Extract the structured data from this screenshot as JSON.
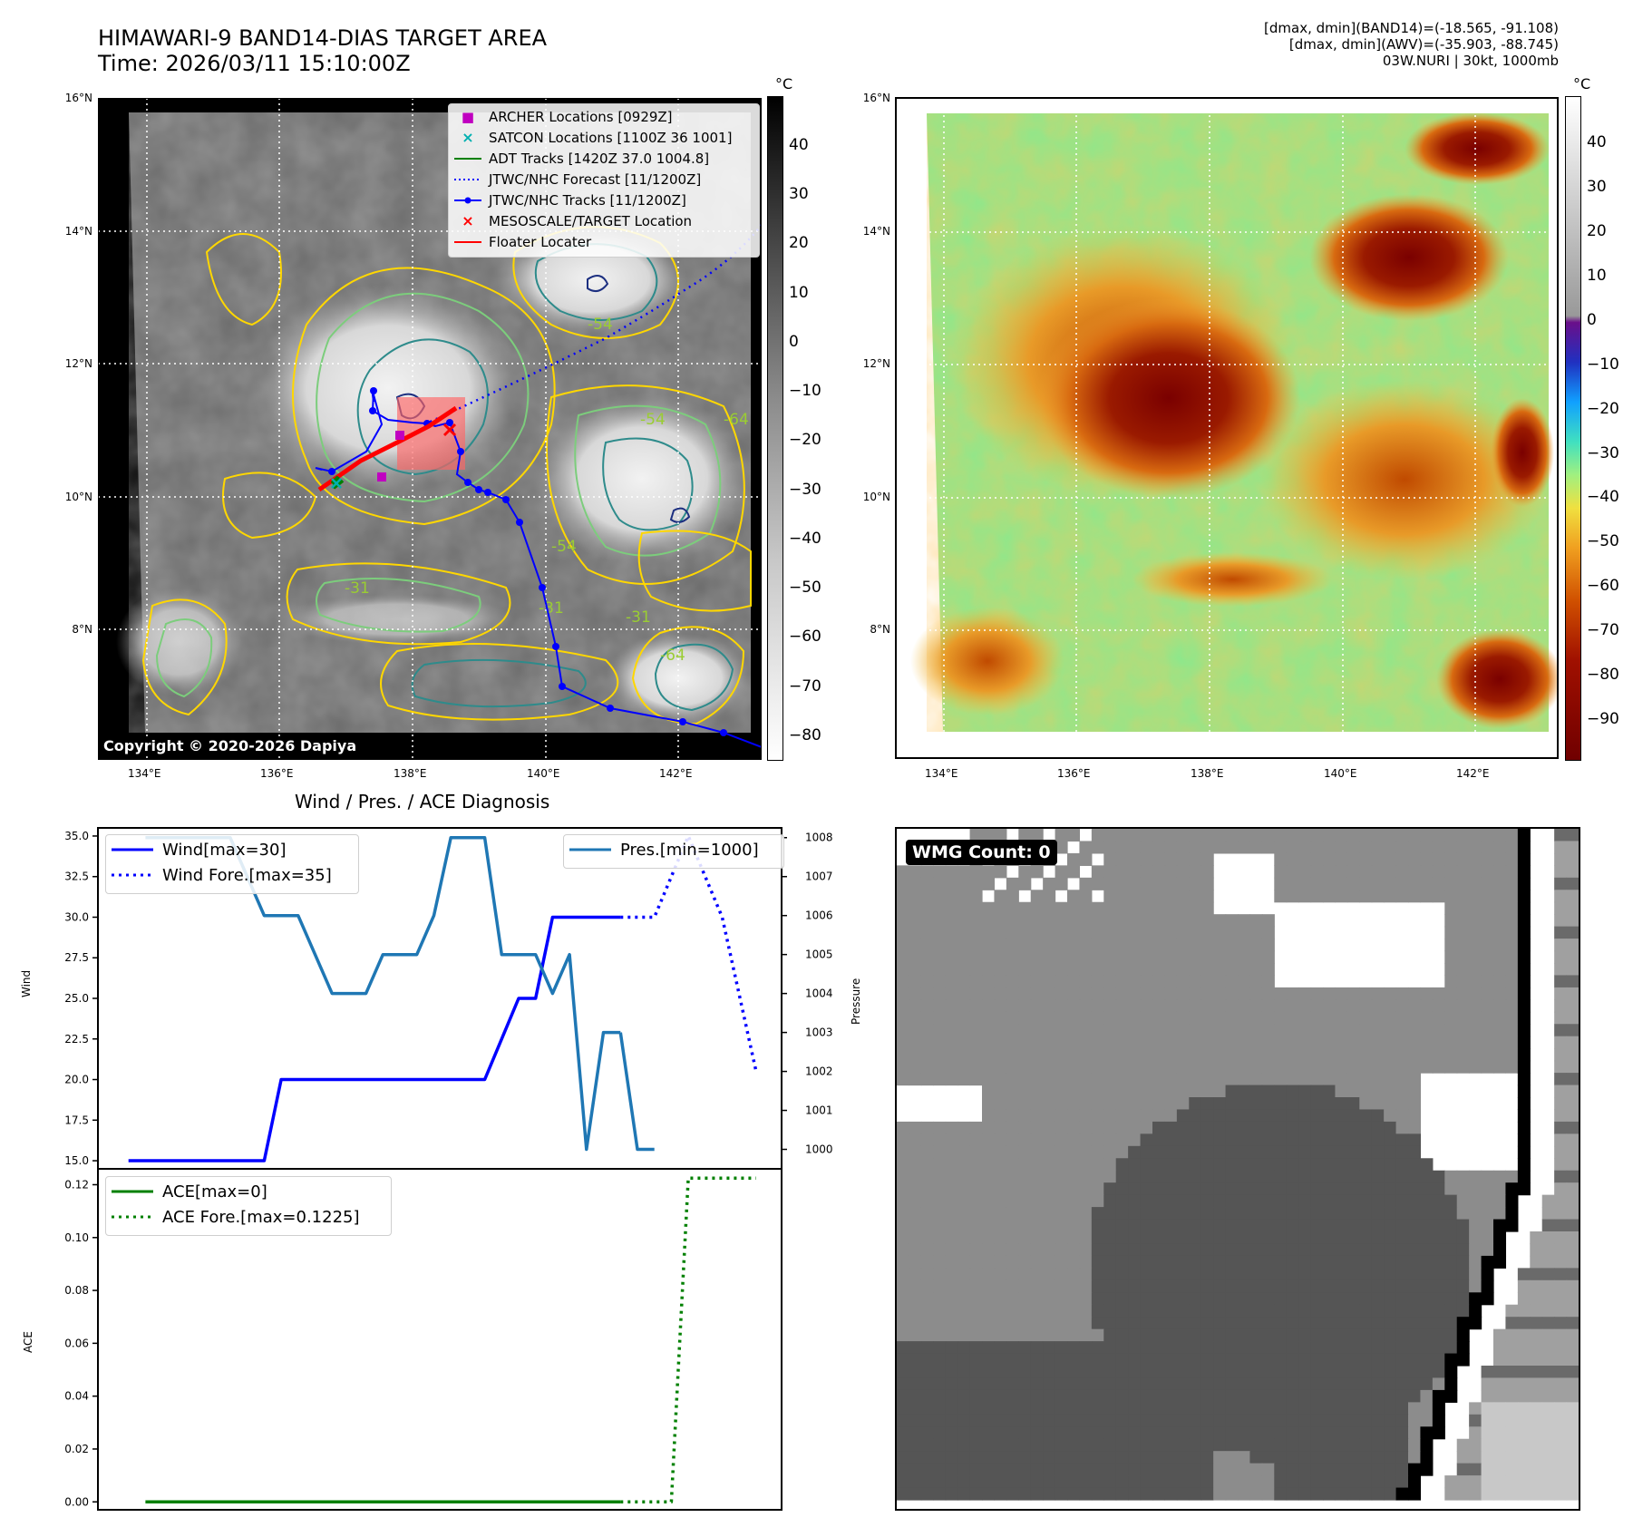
{
  "header": {
    "title_line1": "HIMAWARI-9 BAND14-DIAS TARGET AREA",
    "title_line2": "Time: 2026/03/11 15:10:00Z",
    "info_line1": "[dmax, dmin](BAND14)=(-18.565, -91.108)",
    "info_line2": "[dmax, dmin](AWV)=(-35.903, -88.745)",
    "info_line3": "03W.NURI | 30kt, 1000mb"
  },
  "ir_map": {
    "lat_ticks": [
      "16°N",
      "14°N",
      "12°N",
      "10°N",
      "8°N"
    ],
    "lon_ticks": [
      "134°E",
      "136°E",
      "138°E",
      "140°E",
      "142°E"
    ],
    "copyright": "Copyright © 2020-2026 Dapiya",
    "colorbar_unit": "°C",
    "colorbar_ticks": [
      "40",
      "30",
      "20",
      "10",
      "0",
      "−10",
      "−20",
      "−30",
      "−40",
      "−50",
      "−60",
      "−70",
      "−80"
    ],
    "contour_labels": [
      "-31",
      "-54",
      "-64"
    ],
    "legend": [
      {
        "label": "ARCHER Locations [0929Z]",
        "color": "#c000c0"
      },
      {
        "label": "SATCON Locations [1100Z 36 1001]",
        "color": "#00b0b0"
      },
      {
        "label": "ADT Tracks [1420Z 37.0 1004.8]",
        "color": "#008000"
      },
      {
        "label": "JTWC/NHC Forecast [11/1200Z]",
        "color": "#0000ff"
      },
      {
        "label": "JTWC/NHC Tracks [11/1200Z]",
        "color": "#0000ff"
      },
      {
        "label": "MESOSCALE/TARGET Location",
        "color": "#ff0000"
      },
      {
        "label": "Floater Locater",
        "color": "#ff0000"
      }
    ]
  },
  "awv_map": {
    "lat_ticks": [
      "16°N",
      "14°N",
      "12°N",
      "10°N",
      "8°N"
    ],
    "lon_ticks": [
      "134°E",
      "136°E",
      "138°E",
      "140°E",
      "142°E"
    ],
    "colorbar_unit": "°C",
    "colorbar_ticks": [
      "40",
      "30",
      "20",
      "10",
      "0",
      "−10",
      "−20",
      "−30",
      "−40",
      "−50",
      "−60",
      "−70",
      "−80",
      "−90"
    ]
  },
  "wmg": {
    "label": "WMG Count: 0"
  },
  "chart_data": [
    {
      "type": "line",
      "title": "Wind / Pres. / ACE Diagnosis",
      "ylabel": "Wind",
      "ylabel_right": "Pressure",
      "ylim": [
        14.5,
        35.5
      ],
      "ylim_right": [
        999.5,
        1008.25
      ],
      "yticks": [
        "35.0",
        "32.5",
        "30.0",
        "27.5",
        "25.0",
        "22.5",
        "20.0",
        "17.5",
        "15.0"
      ],
      "yticks_right": [
        "1008",
        "1007",
        "1006",
        "1005",
        "1004",
        "1003",
        "1002",
        "1001",
        "1000"
      ],
      "series": [
        {
          "name": "Wind[max=30]",
          "color": "#0000ff",
          "style": "solid",
          "x": [
            0,
            8,
            9,
            21,
            23,
            24,
            25,
            26,
            28,
            29
          ],
          "values": [
            15,
            15,
            20,
            20,
            25,
            25,
            30,
            30,
            30,
            30
          ]
        },
        {
          "name": "Wind Fore.[max=35]",
          "color": "#0000ff",
          "style": "dotted",
          "x": [
            29,
            31,
            33,
            35,
            37
          ],
          "values": [
            30,
            30,
            35,
            30,
            20.5
          ]
        },
        {
          "name": "Pres.[min=1000]",
          "color": "#1f77b4",
          "style": "solid",
          "axis": "right",
          "x": [
            1,
            6,
            8,
            10,
            12,
            14,
            15,
            17,
            18,
            19,
            21,
            22,
            24,
            25,
            26,
            27,
            28,
            29
          ],
          "values": [
            1008,
            1008,
            1006,
            1006,
            1004,
            1004,
            1005,
            1005,
            1006,
            1008,
            1008,
            1005,
            1005,
            1004,
            1005,
            1000,
            1003,
            1003
          ]
        },
        {
          "name": "Pres.tail",
          "color": "#1f77b4",
          "style": "solid",
          "axis": "right",
          "x": [
            29,
            30,
            31
          ],
          "values": [
            1003,
            1000,
            1000
          ]
        }
      ]
    },
    {
      "type": "line",
      "ylabel": "ACE",
      "ylim": [
        -0.003,
        0.126
      ],
      "yticks": [
        "0.12",
        "0.10",
        "0.08",
        "0.06",
        "0.04",
        "0.02",
        "0.00"
      ],
      "series": [
        {
          "name": "ACE[max=0]",
          "color": "#008000",
          "style": "solid",
          "x": [
            1,
            29
          ],
          "values": [
            0,
            0
          ]
        },
        {
          "name": "ACE Fore.[max=0.1225]",
          "color": "#008000",
          "style": "dotted",
          "x": [
            29,
            32,
            33,
            34,
            37
          ],
          "values": [
            0,
            0,
            0.1225,
            0.1225,
            0.1225
          ]
        }
      ]
    }
  ]
}
